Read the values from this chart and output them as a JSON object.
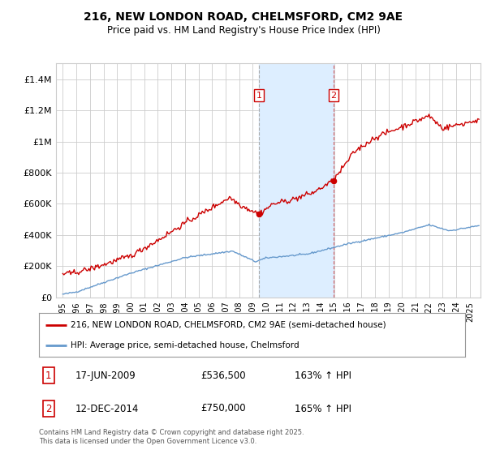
{
  "title1": "216, NEW LONDON ROAD, CHELMSFORD, CM2 9AE",
  "title2": "Price paid vs. HM Land Registry's House Price Index (HPI)",
  "legend_red": "216, NEW LONDON ROAD, CHELMSFORD, CM2 9AE (semi-detached house)",
  "legend_blue": "HPI: Average price, semi-detached house, Chelmsford",
  "annotation1": {
    "label": "1",
    "date_str": "17-JUN-2009",
    "price": 536500,
    "hpi_pct": "163% ↑ HPI"
  },
  "annotation2": {
    "label": "2",
    "date_str": "12-DEC-2014",
    "price": 750000,
    "hpi_pct": "165% ↑ HPI"
  },
  "footnote": "Contains HM Land Registry data © Crown copyright and database right 2025.\nThis data is licensed under the Open Government Licence v3.0.",
  "ylim": [
    0,
    1500000
  ],
  "yticks": [
    0,
    200000,
    400000,
    600000,
    800000,
    1000000,
    1200000,
    1400000
  ],
  "color_red": "#cc0000",
  "color_blue": "#6699cc",
  "color_shade": "#ddeeff",
  "bg_color": "#ffffff",
  "grid_color": "#cccccc",
  "date1_year": 2009.46,
  "date2_year": 2014.96,
  "price1": 536500,
  "price2": 750000,
  "xlim_left": 1994.5,
  "xlim_right": 2025.8,
  "xtick_start": 1995,
  "xtick_end": 2025
}
